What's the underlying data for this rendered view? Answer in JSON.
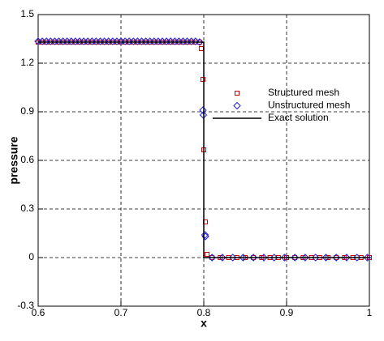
{
  "chart_data": {
    "type": "scatter",
    "x_label": "x",
    "y_label": "pressure",
    "xlim": [
      0.6,
      1
    ],
    "ylim": [
      -0.3,
      1.5
    ],
    "xticks": [
      0.6,
      0.7,
      0.8,
      0.9,
      1
    ],
    "yticks": [
      -0.3,
      0,
      0.3,
      0.6,
      0.9,
      1.2,
      1.5
    ],
    "grid": true,
    "series": [
      {
        "name": "Structured mesh",
        "color": "#cc0000",
        "marker": "square",
        "x": [
          0.6,
          0.605,
          0.61,
          0.615,
          0.62,
          0.625,
          0.63,
          0.635,
          0.64,
          0.645,
          0.65,
          0.655,
          0.66,
          0.665,
          0.67,
          0.675,
          0.68,
          0.685,
          0.69,
          0.695,
          0.7,
          0.705,
          0.71,
          0.715,
          0.72,
          0.725,
          0.73,
          0.735,
          0.74,
          0.745,
          0.75,
          0.755,
          0.76,
          0.765,
          0.77,
          0.775,
          0.78,
          0.785,
          0.79,
          0.795,
          0.797,
          0.799,
          0.8,
          0.802,
          0.804,
          0.81,
          0.82,
          0.83,
          0.84,
          0.85,
          0.86,
          0.87,
          0.88,
          0.89,
          0.9,
          0.91,
          0.92,
          0.93,
          0.94,
          0.95,
          0.96,
          0.97,
          0.98,
          0.99,
          1.0
        ],
        "values": [
          1.33,
          1.33,
          1.33,
          1.33,
          1.33,
          1.33,
          1.33,
          1.33,
          1.33,
          1.33,
          1.33,
          1.33,
          1.33,
          1.33,
          1.33,
          1.33,
          1.33,
          1.33,
          1.33,
          1.33,
          1.33,
          1.33,
          1.33,
          1.33,
          1.33,
          1.33,
          1.33,
          1.33,
          1.33,
          1.33,
          1.33,
          1.33,
          1.33,
          1.33,
          1.33,
          1.33,
          1.33,
          1.33,
          1.33,
          1.33,
          1.29,
          1.1,
          0.665,
          0.22,
          0.02,
          0,
          0,
          0,
          0,
          0,
          0,
          0,
          0,
          0,
          0,
          0,
          0,
          0,
          0,
          0,
          0,
          0,
          0,
          0,
          0
        ]
      },
      {
        "name": "Unstructured mesh",
        "color": "#2222dd",
        "marker": "diamond",
        "x": [
          0.6,
          0.605,
          0.61,
          0.615,
          0.62,
          0.625,
          0.63,
          0.635,
          0.64,
          0.645,
          0.65,
          0.655,
          0.66,
          0.665,
          0.67,
          0.675,
          0.68,
          0.685,
          0.69,
          0.695,
          0.7,
          0.705,
          0.71,
          0.715,
          0.72,
          0.725,
          0.73,
          0.735,
          0.74,
          0.745,
          0.75,
          0.755,
          0.76,
          0.765,
          0.77,
          0.775,
          0.78,
          0.785,
          0.79,
          0.795,
          0.799,
          0.7995,
          0.8015,
          0.802,
          0.81,
          0.8225,
          0.835,
          0.8475,
          0.86,
          0.8725,
          0.885,
          0.8975,
          0.91,
          0.9225,
          0.935,
          0.9475,
          0.96,
          0.9725,
          0.985,
          0.9975
        ],
        "values": [
          1.335,
          1.335,
          1.335,
          1.335,
          1.335,
          1.335,
          1.335,
          1.335,
          1.335,
          1.335,
          1.335,
          1.335,
          1.335,
          1.335,
          1.335,
          1.335,
          1.335,
          1.335,
          1.335,
          1.335,
          1.335,
          1.335,
          1.335,
          1.335,
          1.335,
          1.335,
          1.335,
          1.335,
          1.335,
          1.335,
          1.335,
          1.335,
          1.335,
          1.335,
          1.335,
          1.335,
          1.335,
          1.335,
          1.335,
          1.33,
          0.91,
          0.88,
          0.14,
          0.13,
          0,
          0,
          0,
          0,
          0,
          0,
          0,
          0,
          0,
          0,
          0,
          0,
          0,
          0,
          0,
          0
        ]
      },
      {
        "name": "Exact solution",
        "color": "#000000",
        "marker": "line",
        "x": [
          0.6,
          0.8,
          0.8,
          1
        ],
        "values": [
          1.33,
          1.33,
          0,
          0
        ]
      }
    ]
  }
}
